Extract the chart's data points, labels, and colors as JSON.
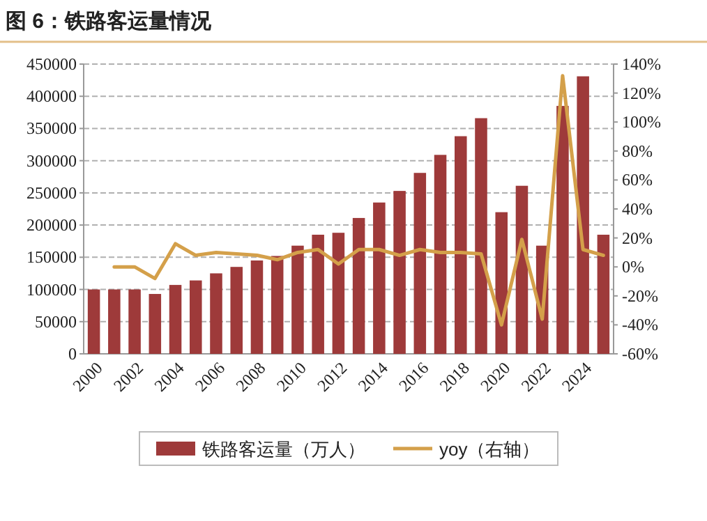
{
  "chart_data": {
    "type": "bar",
    "title": "图 6：铁路客运量情况",
    "categories": [
      "2000",
      null,
      "2002",
      null,
      "2004",
      null,
      "2006",
      null,
      "2008",
      null,
      "2010",
      null,
      "2012",
      null,
      "2014",
      null,
      "2016",
      null,
      "2018",
      null,
      "2020",
      null,
      "2022",
      null,
      "2024",
      null
    ],
    "series": [
      {
        "name": "铁路客运量（万人）",
        "color": "#9e3a3a",
        "values": [
          100000,
          100000,
          100000,
          93000,
          107000,
          114000,
          125000,
          135000,
          145000,
          152000,
          168000,
          185000,
          188000,
          211000,
          235000,
          253000,
          281000,
          309000,
          338000,
          366000,
          220000,
          261000,
          168000,
          385000,
          431000,
          185000
        ]
      },
      {
        "type": "line",
        "axis": "y2",
        "name": "yoy（右轴）",
        "color": "#d4a04a",
        "values": [
          null,
          0,
          0,
          -8,
          16,
          8,
          10,
          9,
          8,
          5,
          10,
          12,
          2,
          12,
          12,
          8,
          12,
          10,
          10,
          9,
          -40,
          19,
          -36,
          132,
          12,
          8
        ]
      }
    ],
    "ylim": [
      0,
      450000
    ],
    "yticks": [
      0,
      50000,
      100000,
      150000,
      200000,
      250000,
      300000,
      350000,
      400000,
      450000
    ],
    "y2lim": [
      -60,
      140
    ],
    "y2ticks": [
      {
        "value": -60,
        "label": "-60%"
      },
      {
        "value": -40,
        "label": "-40%"
      },
      {
        "value": -20,
        "label": "-20%"
      },
      {
        "value": 0,
        "label": "0%"
      },
      {
        "value": 20,
        "label": "20%"
      },
      {
        "value": 40,
        "label": "40%"
      },
      {
        "value": 60,
        "label": "60%"
      },
      {
        "value": 80,
        "label": "80%"
      },
      {
        "value": 100,
        "label": "100%"
      },
      {
        "value": 120,
        "label": "120%"
      },
      {
        "value": 140,
        "label": "140%"
      }
    ],
    "grid": "y",
    "legend": "bottom"
  }
}
